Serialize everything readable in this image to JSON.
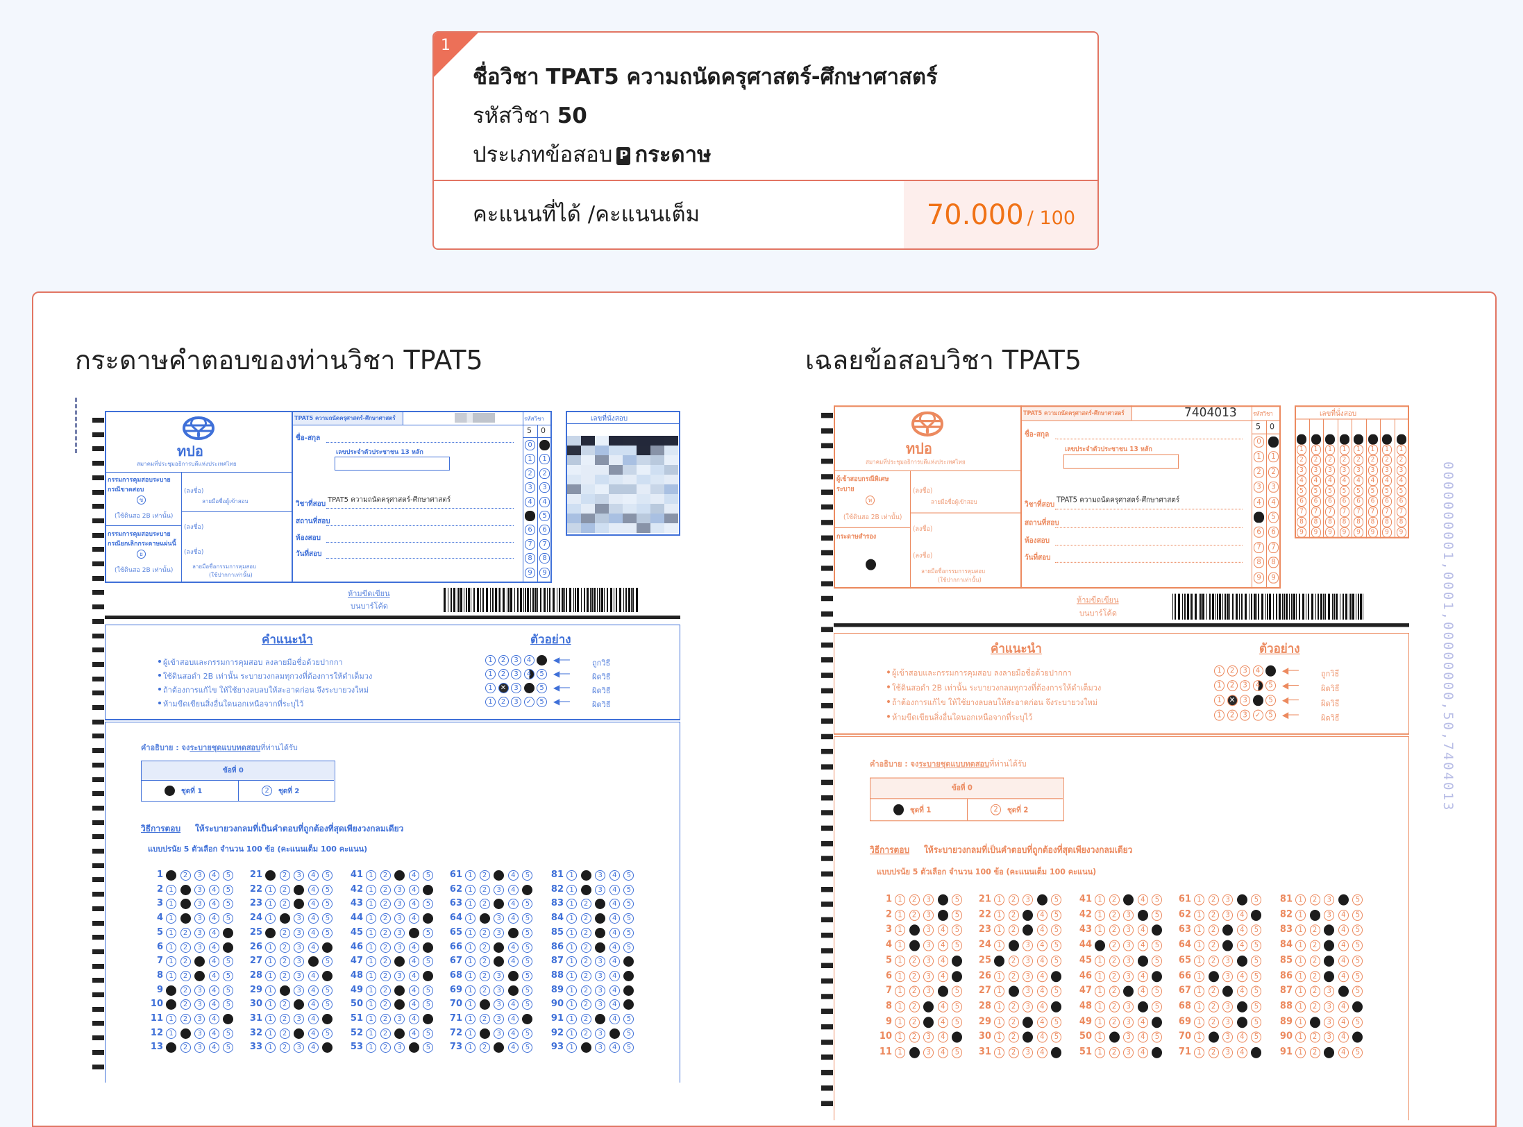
{
  "card": {
    "badge": "1",
    "subject_label": "ชื่อวิชา",
    "subject_name": "TPAT5 ความถนัดครุศาสตร์-ศึกษาศาสตร์",
    "code_label": "รหัสวิชา",
    "code": "50",
    "type_label": "ประเภทข้อสอบ",
    "type_icon": "paper-p-icon",
    "type_icon_letter": "P",
    "type": "กระดาษ",
    "score_label": "คะแนนที่ได้ /คะแนนเต็ม",
    "score": "70.000",
    "full_score": "/ 100",
    "colors": {
      "accent": "#e27563",
      "score": "#f07216",
      "score_bg": "#fdeeec"
    }
  },
  "panels": [
    {
      "title": "กระดาษคำตอบของท่านวิชา TPAT5"
    },
    {
      "title": "เฉลยข้อสอบวิชา TPAT5"
    }
  ],
  "sheet_common": {
    "logo_text": "ทปอ",
    "logo_caption": "สมาคมที่ประชุมอธิการบดีแห่งประเทศไทย",
    "subject_header": "TPAT5 ความถนัดครุศาสตร์-ศึกษาศาสตร์",
    "code_header": "รหัสวิชา",
    "code_digits": [
      "5",
      "0"
    ],
    "name_label": "ชื่อ-สกุล",
    "id_label": "เลขประจำตัวประชาชน 13 หลัก",
    "subject_field_label": "วิชาที่สอบ",
    "subject_field_value": "TPAT5 ความถนัดครุศาสตร์-ศึกษาศาสตร์",
    "venue_label": "สถานที่สอบ",
    "room_label": "ห้องสอบ",
    "date_label": "วันที่สอบ",
    "seat_label": "เลขที่นั่งสอบ",
    "sign_label": "(ลงชื่อ)",
    "examinee_sign": "ลายมือชื่อผู้เข้าสอบ",
    "proctor_sign": "ลายมือชื่อกรรมการคุมสอบ",
    "pen_only": "(ใช้ปากกาเท่านั้น)",
    "no_write_1": "ห้ามขีดเขียน",
    "no_write_2": "บนบาร์โค้ด",
    "advice_title": "คำแนะนำ",
    "advice": [
      "ผู้เข้าสอบและกรรมการคุมสอบ ลงลายมือชื่อด้วยปากกา",
      "ใช้ดินสอดำ 2B เท่านั้น ระบายวงกลมทุกวงที่ต้องการให้ดำเต็มวง",
      "ถ้าต้องการแก้ไข ให้ใช้ยางลบลบให้สะอาดก่อน จึงระบายวงใหม่",
      "ห้ามขีดเขียนสิ่งอื่นใดนอกเหนือจากที่ระบุไว้"
    ],
    "example_title": "ตัวอย่าง",
    "example_labels": [
      "ถูกวิธี",
      "ผิดวิธี",
      "ผิดวิธี",
      "ผิดวิธี"
    ],
    "explain_prefix": "คำอธิบาย : จง",
    "explain_underlined": "ระบายชุดแบบทดสอบ",
    "explain_suffix": "ที่ท่านได้รับ",
    "set_header": "ข้อที่ 0",
    "set_options": [
      "ชุดที่ 1",
      "ชุดที่ 2"
    ],
    "method_title": "วิธีการตอบ",
    "method_text": "ให้ระบายวงกลมที่เป็นคำตอบที่ถูกต้องที่สุดเพียงวงกลมเดียว",
    "format_text": "แบบปรนัย 5 ตัวเลือก จำนวน 100 ข้อ (คะแนนเต็ม 100 คะแนน)"
  },
  "sheets": [
    {
      "role": "student-answer-sheet",
      "ink": "#3f70d8",
      "box1_lines": [
        "กรรมการคุมสอบระบาย",
        "กรณีขาดสอบ"
      ],
      "box1_letter": "ข",
      "box1_note": "(ใช้ดินสอ 2B เท่านั้น)",
      "box2_lines": [
        "กรรมการคุมสอบระบาย",
        "กรณียกเลิกกระดาษแผ่นนี้"
      ],
      "box2_letter": "ย",
      "box2_note": "(ใช้ดินสอ 2B เท่านั้น)",
      "box2_filled": false,
      "exam_number": "",
      "exam_number_blurred": true,
      "seat_blurred": true,
      "selected_set": 1,
      "answer_columns": [
        {
          "start": 1,
          "answers": [
            1,
            2,
            2,
            2,
            5,
            5,
            3,
            3,
            1,
            1,
            5,
            2,
            1
          ]
        },
        {
          "start": 21,
          "answers": [
            1,
            3,
            3,
            2,
            1,
            5,
            4,
            5,
            2,
            3,
            5,
            3,
            5
          ]
        },
        {
          "start": 41,
          "answers": [
            3,
            5,
            null,
            5,
            4,
            5,
            3,
            5,
            3,
            3,
            5,
            3,
            4
          ]
        },
        {
          "start": 61,
          "answers": [
            3,
            5,
            3,
            2,
            4,
            3,
            3,
            4,
            4,
            2,
            5,
            2,
            3
          ]
        },
        {
          "start": 81,
          "answers": [
            2,
            2,
            3,
            3,
            3,
            3,
            5,
            5,
            5,
            5,
            3,
            4,
            2
          ]
        }
      ]
    },
    {
      "role": "answer-key-sheet",
      "ink": "#ec8a5f",
      "box1_lines": [
        "ผู้เข้าสอบกรณีพิเศษ",
        "ระบาย"
      ],
      "box1_letter": "พ",
      "box1_note": "(ใช้ดินสอ 2B เท่านั้น)",
      "box2_lines": [
        "กระดาษสำรอง"
      ],
      "box2_letter": "",
      "box2_note": "",
      "box2_filled": true,
      "exam_number": "7404013",
      "exam_number_blurred": false,
      "seat_blurred": false,
      "seat_digits": "00000000",
      "selected_set": 1,
      "answer_columns": [
        {
          "start": 1,
          "answers": [
            4,
            4,
            2,
            2,
            5,
            5,
            4,
            3,
            3,
            5,
            2
          ]
        },
        {
          "start": 21,
          "answers": [
            4,
            3,
            3,
            2,
            1,
            5,
            2,
            5,
            3,
            3,
            5
          ]
        },
        {
          "start": 41,
          "answers": [
            3,
            4,
            5,
            1,
            4,
            5,
            3,
            4,
            5,
            2,
            5
          ]
        },
        {
          "start": 61,
          "answers": [
            4,
            5,
            3,
            3,
            4,
            2,
            3,
            4,
            4,
            2,
            5
          ]
        },
        {
          "start": 81,
          "answers": [
            4,
            2,
            3,
            3,
            3,
            3,
            4,
            5,
            2,
            5,
            3
          ]
        }
      ]
    }
  ],
  "side_print": "0000000001,0001,00000000,50,7404013"
}
